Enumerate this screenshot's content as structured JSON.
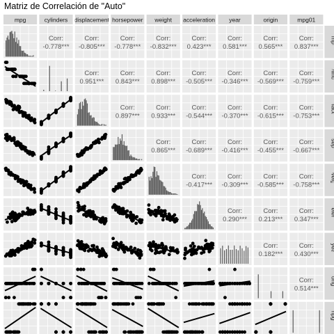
{
  "title": "Matriz de Correlación de \"Auto\"",
  "chart_data": {
    "type": "scatter-matrix",
    "variables": [
      "mpg",
      "cylinders",
      "displacement",
      "horsepower",
      "weight",
      "acceleration",
      "year",
      "origin",
      "mpg01"
    ],
    "correlation_label": "Corr:",
    "grid": true,
    "panel_background": "#ebebeb",
    "strip_background": "#d9d9d9",
    "point_color": "#000000",
    "bar_color": "#595959",
    "correlations": [
      {
        "row": "cylinders",
        "col": "mpg",
        "text": "-0.778***"
      },
      {
        "row": "displacement",
        "col": "mpg",
        "text": "-0.805***"
      },
      {
        "row": "horsepower",
        "col": "mpg",
        "text": "-0.778***"
      },
      {
        "row": "weight",
        "col": "mpg",
        "text": "-0.832***"
      },
      {
        "row": "acceleration",
        "col": "mpg",
        "text": "0.423***"
      },
      {
        "row": "year",
        "col": "mpg",
        "text": "0.581***"
      },
      {
        "row": "origin",
        "col": "mpg",
        "text": "0.565***"
      },
      {
        "row": "mpg01",
        "col": "mpg",
        "text": "0.837***"
      },
      {
        "row": "displacement",
        "col": "cylinders",
        "text": "0.951***"
      },
      {
        "row": "horsepower",
        "col": "cylinders",
        "text": "0.843***"
      },
      {
        "row": "weight",
        "col": "cylinders",
        "text": "0.898***"
      },
      {
        "row": "acceleration",
        "col": "cylinders",
        "text": "-0.505***"
      },
      {
        "row": "year",
        "col": "cylinders",
        "text": "-0.346***"
      },
      {
        "row": "origin",
        "col": "cylinders",
        "text": "-0.569***"
      },
      {
        "row": "mpg01",
        "col": "cylinders",
        "text": "-0.759***"
      },
      {
        "row": "horsepower",
        "col": "displacement",
        "text": "0.897***"
      },
      {
        "row": "weight",
        "col": "displacement",
        "text": "0.933***"
      },
      {
        "row": "acceleration",
        "col": "displacement",
        "text": "-0.544***"
      },
      {
        "row": "year",
        "col": "displacement",
        "text": "-0.370***"
      },
      {
        "row": "origin",
        "col": "displacement",
        "text": "-0.615***"
      },
      {
        "row": "mpg01",
        "col": "displacement",
        "text": "-0.753***"
      },
      {
        "row": "weight",
        "col": "horsepower",
        "text": "0.865***"
      },
      {
        "row": "acceleration",
        "col": "horsepower",
        "text": "-0.689***"
      },
      {
        "row": "year",
        "col": "horsepower",
        "text": "-0.416***"
      },
      {
        "row": "origin",
        "col": "horsepower",
        "text": "-0.455***"
      },
      {
        "row": "mpg01",
        "col": "horsepower",
        "text": "-0.667***"
      },
      {
        "row": "acceleration",
        "col": "weight",
        "text": "-0.417***"
      },
      {
        "row": "year",
        "col": "weight",
        "text": "-0.309***"
      },
      {
        "row": "origin",
        "col": "weight",
        "text": "-0.585***"
      },
      {
        "row": "mpg01",
        "col": "weight",
        "text": "-0.758***"
      },
      {
        "row": "year",
        "col": "acceleration",
        "text": "0.290***"
      },
      {
        "row": "origin",
        "col": "acceleration",
        "text": "0.213***"
      },
      {
        "row": "mpg01",
        "col": "acceleration",
        "text": "0.347***"
      },
      {
        "row": "origin",
        "col": "year",
        "text": "0.182***"
      },
      {
        "row": "mpg01",
        "col": "year",
        "text": "0.430***"
      },
      {
        "row": "mpg01",
        "col": "origin",
        "text": "0.514***"
      }
    ]
  }
}
